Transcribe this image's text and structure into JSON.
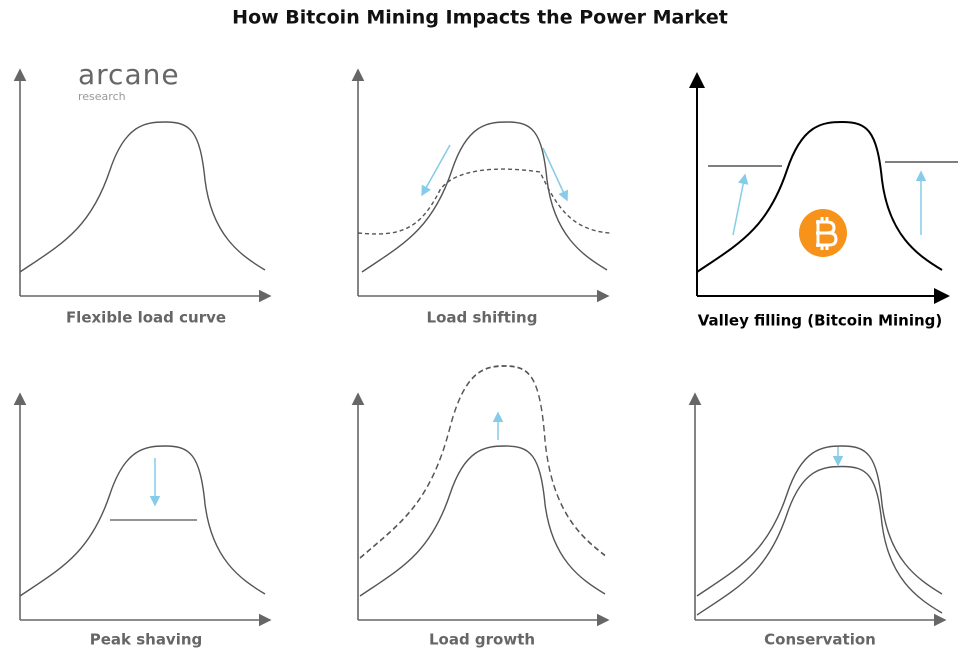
{
  "title": "How Bitcoin Mining Impacts the Power Market",
  "logo": {
    "name": "arcane",
    "sub": "research"
  },
  "panels": [
    {
      "label": "Flexible load curve"
    },
    {
      "label": "Load shifting"
    },
    {
      "label": "Valley filling (Bitcoin Mining)"
    },
    {
      "label": "Peak shaving"
    },
    {
      "label": "Load growth"
    },
    {
      "label": "Conservation"
    }
  ]
}
